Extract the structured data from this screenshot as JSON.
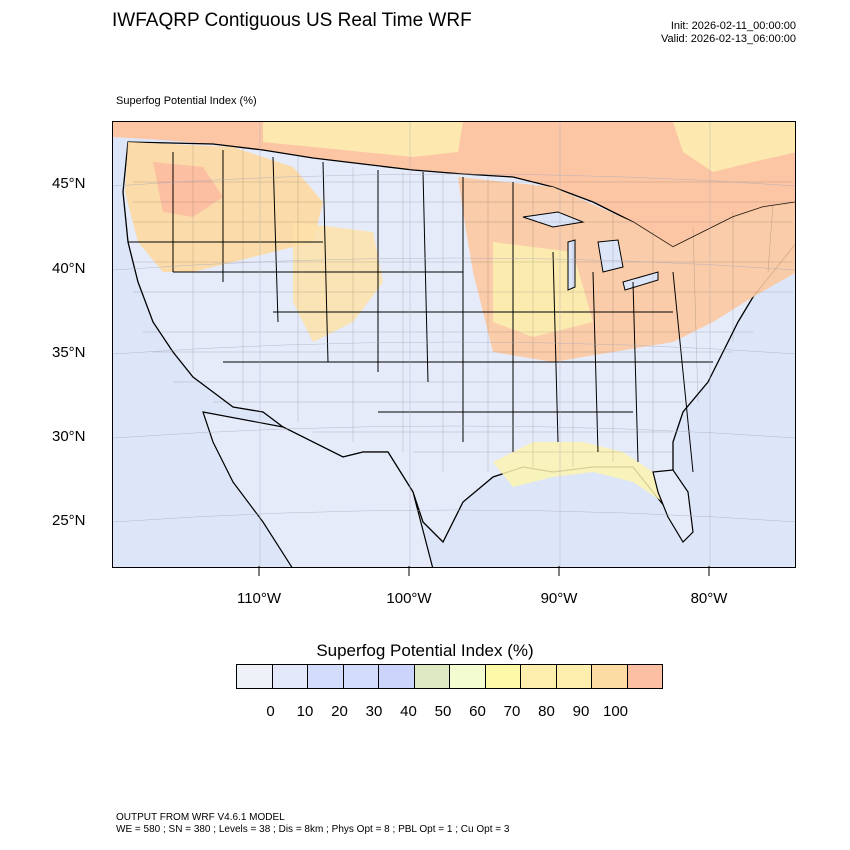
{
  "header": {
    "title": "IWFAQRP Contiguous US Real Time WRF",
    "init": "Init: 2026-02-11_00:00:00",
    "valid": "Valid: 2026-02-13_06:00:00"
  },
  "map": {
    "field_label": "Superfog Potential Index   (%)",
    "lat_labels": [
      "45°N",
      "40°N",
      "35°N",
      "30°N",
      "25°N"
    ],
    "lon_labels": [
      "110°W",
      "100°W",
      "90°W",
      "80°W"
    ],
    "colors": {
      "ocean": "#dde6f8",
      "low": "#e3e9fb",
      "land_low": "#e8ecfb",
      "mid_yellow": "#fdf3b0",
      "high_orange": "#fdd9a0",
      "very_high": "#fcb8a0",
      "state_line": "#000000",
      "county_line": "#333333"
    }
  },
  "colorbar": {
    "title": "Superfog Potential Index  (%)",
    "colors": [
      "#eef1f8",
      "#e3e8fb",
      "#d3dcfb",
      "#d3dcfb",
      "#cdd4fb",
      "#dde9c3",
      "#f3fbd0",
      "#fdf9a8",
      "#fdeead",
      "#fdeead",
      "#fddca3",
      "#fcbfa3"
    ],
    "ticks": [
      "0",
      "10",
      "20",
      "30",
      "40",
      "50",
      "60",
      "70",
      "80",
      "90",
      "100"
    ]
  },
  "footer": {
    "line1": "OUTPUT FROM WRF V4.6.1 MODEL",
    "line2": "WE = 580 ; SN = 380 ; Levels = 38 ; Dis = 8km ; Phys Opt = 8 ; PBL Opt = 1 ; Cu Opt = 3"
  }
}
